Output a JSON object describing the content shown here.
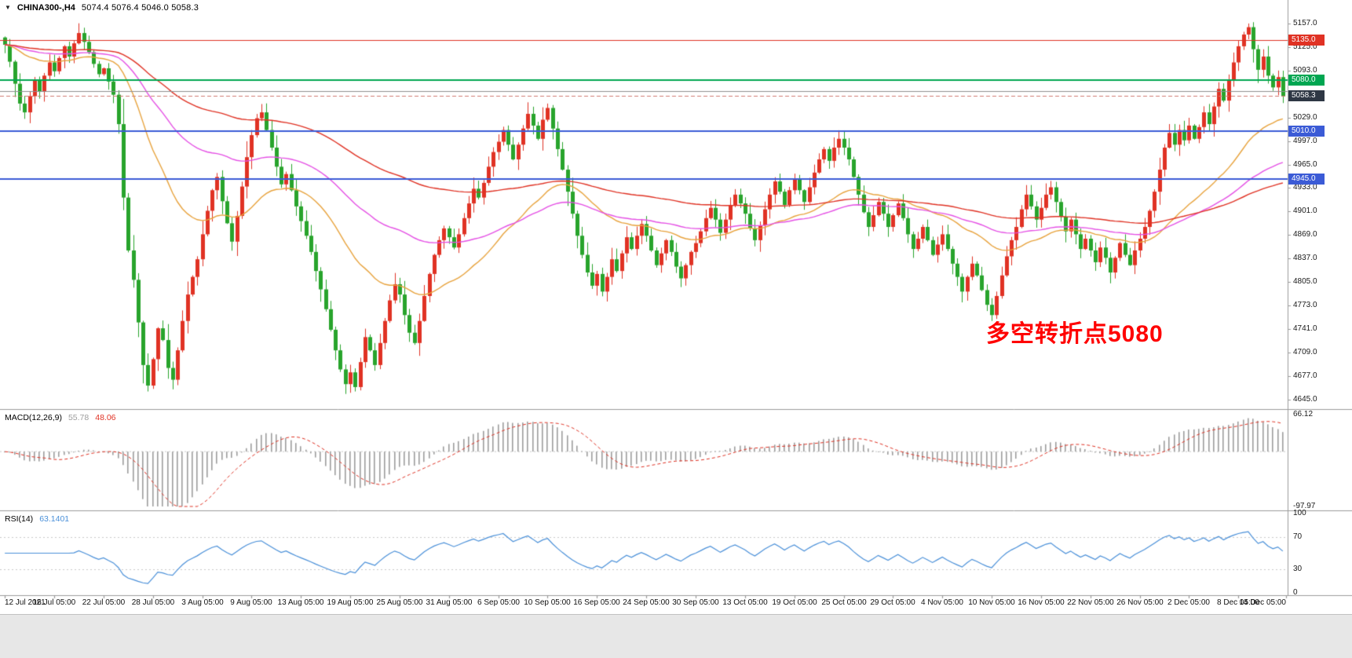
{
  "colors": {
    "candle_up": "#e03224",
    "candle_down": "#28a42c",
    "ma_fast": "#e8a33d",
    "ma_mid": "#e550e5",
    "ma_slow": "#e03224",
    "line_red": "#e03224",
    "line_green": "#00a651",
    "line_blue": "#3b5bd6",
    "line_gray": "#8f8f8f",
    "bid_line": "#cf7a72",
    "macd_hist": "#9e9e9e",
    "macd_signal": "#e03224",
    "rsi_line": "#4a90d9",
    "annotation": "#ff0000",
    "badge_red": "#e03224",
    "badge_green": "#00a651",
    "badge_blue": "#3b5bd6",
    "badge_dark": "#2e3744",
    "axis_text": "#1a1a1a",
    "separator": "#9b9b9b",
    "level_line": "#c9c9c9"
  },
  "chart_data": {
    "type": "candlestick",
    "symbol": "CHINA300-",
    "timeframe": "H4",
    "symbol_timeframe": "CHINA300-,H4",
    "ohlc_text": "5074.4 5076.4 5046.0 5058.3",
    "ohlc_last": {
      "open": 5074.4,
      "high": 5076.4,
      "low": 5046.0,
      "close": 5058.3
    },
    "current_price": 5058.3,
    "y_axis": {
      "min": 4632,
      "max": 5189,
      "tick_step": 32,
      "ticks": [
        {
          "label": "5157.0",
          "value": 5157
        },
        {
          "label": "5125.0",
          "value": 5125
        },
        {
          "label": "5093.0",
          "value": 5093
        },
        {
          "label": "5029.0",
          "value": 5029
        },
        {
          "label": "4997.0",
          "value": 4997
        },
        {
          "label": "4965.0",
          "value": 4965
        },
        {
          "label": "4933.0",
          "value": 4933
        },
        {
          "label": "4901.0",
          "value": 4901
        },
        {
          "label": "4869.0",
          "value": 4869
        },
        {
          "label": "4837.0",
          "value": 4837
        },
        {
          "label": "4805.0",
          "value": 4805
        },
        {
          "label": "4773.0",
          "value": 4773
        },
        {
          "label": "4741.0",
          "value": 4741
        },
        {
          "label": "4709.0",
          "value": 4709
        },
        {
          "label": "4677.0",
          "value": 4677
        },
        {
          "label": "4645.0",
          "value": 4645
        }
      ],
      "badges": [
        {
          "label": "5135.0",
          "value": 5135,
          "color_key": "badge_red"
        },
        {
          "label": "5080.0",
          "value": 5080,
          "color_key": "badge_green"
        },
        {
          "label": "5058.3",
          "value": 5058.3,
          "color_key": "badge_dark"
        },
        {
          "label": "5010.0",
          "value": 5010,
          "color_key": "badge_blue"
        },
        {
          "label": "4945.0",
          "value": 4945,
          "color_key": "badge_blue"
        }
      ]
    },
    "hlines": [
      {
        "price": 5135,
        "color_key": "line_red",
        "width": 1,
        "style": "solid"
      },
      {
        "price": 5080,
        "color_key": "line_green",
        "width": 2,
        "style": "solid"
      },
      {
        "price": 5065,
        "color_key": "line_gray",
        "width": 1,
        "style": "solid"
      },
      {
        "price": 5058.3,
        "color_key": "bid_line",
        "width": 1,
        "style": "dash"
      },
      {
        "price": 5010,
        "color_key": "line_blue",
        "width": 2,
        "style": "solid"
      },
      {
        "price": 4945,
        "color_key": "line_blue",
        "width": 2,
        "style": "solid"
      }
    ],
    "moving_averages": [
      {
        "name": "MA-fast",
        "period": 34,
        "color_key": "ma_fast"
      },
      {
        "name": "MA-mid",
        "period": 75,
        "color_key": "ma_mid"
      },
      {
        "name": "MA-slow",
        "period": 140,
        "color_key": "ma_slow"
      }
    ],
    "closes": [
      5128,
      5105,
      5075,
      5048,
      5036,
      5058,
      5080,
      5064,
      5086,
      5104,
      5092,
      5110,
      5126,
      5112,
      5130,
      5144,
      5132,
      5118,
      5102,
      5088,
      5096,
      5078,
      5060,
      5020,
      4920,
      4848,
      4808,
      4750,
      4692,
      4664,
      4700,
      4742,
      4726,
      4688,
      4672,
      4712,
      4752,
      4788,
      4812,
      4836,
      4870,
      4902,
      4930,
      4948,
      4915,
      4885,
      4860,
      4895,
      4935,
      4975,
      5005,
      5028,
      5036,
      5012,
      4988,
      4962,
      4938,
      4952,
      4930,
      4908,
      4888,
      4868,
      4846,
      4820,
      4795,
      4768,
      4740,
      4712,
      4686,
      4666,
      4682,
      4662,
      4696,
      4730,
      4712,
      4692,
      4722,
      4752,
      4780,
      4802,
      4788,
      4760,
      4736,
      4722,
      4752,
      4786,
      4816,
      4842,
      4862,
      4878,
      4866,
      4852,
      4870,
      4892,
      4912,
      4932,
      4920,
      4940,
      4962,
      4982,
      4996,
      5012,
      4992,
      4972,
      4992,
      5014,
      5034,
      5018,
      5000,
      5026,
      5042,
      5014,
      4986,
      4958,
      4928,
      4898,
      4868,
      4842,
      4818,
      4800,
      4816,
      4792,
      4812,
      4836,
      4820,
      4844,
      4866,
      4850,
      4868,
      4884,
      4868,
      4848,
      4828,
      4844,
      4862,
      4846,
      4826,
      4810,
      4828,
      4846,
      4858,
      4874,
      4892,
      4906,
      4890,
      4872,
      4890,
      4910,
      4924,
      4912,
      4898,
      4878,
      4862,
      4882,
      4904,
      4924,
      4942,
      4928,
      4910,
      4930,
      4946,
      4930,
      4914,
      4934,
      4954,
      4972,
      4986,
      4970,
      4988,
      5000,
      4988,
      4972,
      4948,
      4924,
      4900,
      4880,
      4896,
      4914,
      4898,
      4880,
      4896,
      4912,
      4892,
      4870,
      4850,
      4864,
      4880,
      4862,
      4842,
      4856,
      4870,
      4850,
      4830,
      4812,
      4792,
      4812,
      4830,
      4814,
      4794,
      4774,
      4760,
      4786,
      4814,
      4840,
      4862,
      4880,
      4904,
      4924,
      4908,
      4890,
      4906,
      4924,
      4934,
      4914,
      4894,
      4874,
      4890,
      4870,
      4850,
      4864,
      4848,
      4832,
      4852,
      4838,
      4818,
      4838,
      4858,
      4842,
      4828,
      4848,
      4864,
      4880,
      4902,
      4928,
      4958,
      4988,
      5008,
      4992,
      5012,
      4998,
      5018,
      5000,
      5016,
      5036,
      5020,
      5044,
      5068,
      5052,
      5080,
      5104,
      5126,
      5142,
      5152,
      5122,
      5094,
      5112,
      5086,
      5070,
      5084,
      5058.3
    ],
    "wick_overrides": {
      "29": {
        "low": 4656
      },
      "71": {
        "low": 4656
      },
      "110": {
        "high": 5048
      },
      "200": {
        "low": 4752
      },
      "252": {
        "high": 5157
      }
    },
    "x_labels": [
      "12 Jul 2021",
      "16 Jul 05:00",
      "22 Jul 05:00",
      "28 Jul 05:00",
      "3 Aug 05:00",
      "9 Aug 05:00",
      "13 Aug 05:00",
      "19 Aug 05:00",
      "25 Aug 05:00",
      "31 Aug 05:00",
      "6 Sep 05:00",
      "10 Sep 05:00",
      "16 Sep 05:00",
      "24 Sep 05:00",
      "30 Sep 05:00",
      "13 Oct 05:00",
      "19 Oct 05:00",
      "25 Oct 05:00",
      "29 Oct 05:00",
      "4 Nov 05:00",
      "10 Nov 05:00",
      "16 Nov 05:00",
      "22 Nov 05:00",
      "26 Nov 05:00",
      "2 Dec 05:00",
      "8 Dec 05:00",
      "14 Dec 05:00"
    ],
    "indicators": {
      "macd": {
        "title": "MACD(12,26,9)",
        "value_main": "55.78",
        "value_signal": "48.06",
        "fast": 12,
        "slow": 26,
        "signal": 9,
        "axis_max_value": 66.12,
        "axis_min_value": -97.97,
        "axis_labels": [
          {
            "label": "66.12",
            "value": 66.12
          },
          {
            "label": "-97.97",
            "value": -97.97
          }
        ]
      },
      "rsi": {
        "title": "RSI(14)",
        "value": "63.1401",
        "period": 14,
        "levels": [
          70,
          30
        ],
        "axis_labels": [
          {
            "label": "100",
            "value": 100
          },
          {
            "label": "70",
            "value": 70
          },
          {
            "label": "30",
            "value": 30
          },
          {
            "label": "0",
            "value": 0
          }
        ]
      }
    },
    "annotation": {
      "text": "多空转折点5080",
      "color_key": "annotation",
      "price_ref": 5080
    }
  }
}
